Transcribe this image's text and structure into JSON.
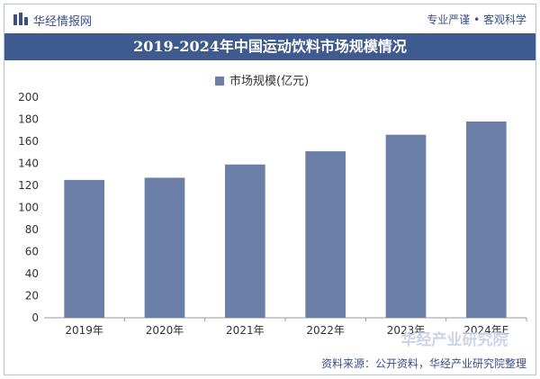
{
  "header": {
    "brand": "华经情报网",
    "logo_icon": "bar-chart-logo-icon",
    "tagline": "专业严谨 • 客观科学"
  },
  "title": "2019-2024年中国运动饮料市场规模情况",
  "footer": {
    "source": "资料来源：公开资料，华经产业研究院整理",
    "watermark": "华经产业研究院"
  },
  "colors": {
    "bar": "#6b7fa8",
    "titlebar": "#3f5a8f",
    "grid": "#e0e0e0",
    "axis": "#999999"
  },
  "chart_data": {
    "type": "bar",
    "categories": [
      "2019年",
      "2020年",
      "2021年",
      "2022年",
      "2023年",
      "2024年E"
    ],
    "series": [
      {
        "name": "市场规模(亿元)",
        "values": [
          125,
          127,
          139,
          151,
          166,
          178
        ]
      }
    ],
    "ylim": [
      0,
      200
    ],
    "yticks": [
      0,
      20,
      40,
      60,
      80,
      100,
      120,
      140,
      160,
      180,
      200
    ],
    "legend": "top-center",
    "grid": false,
    "xlabel": "",
    "ylabel": ""
  }
}
